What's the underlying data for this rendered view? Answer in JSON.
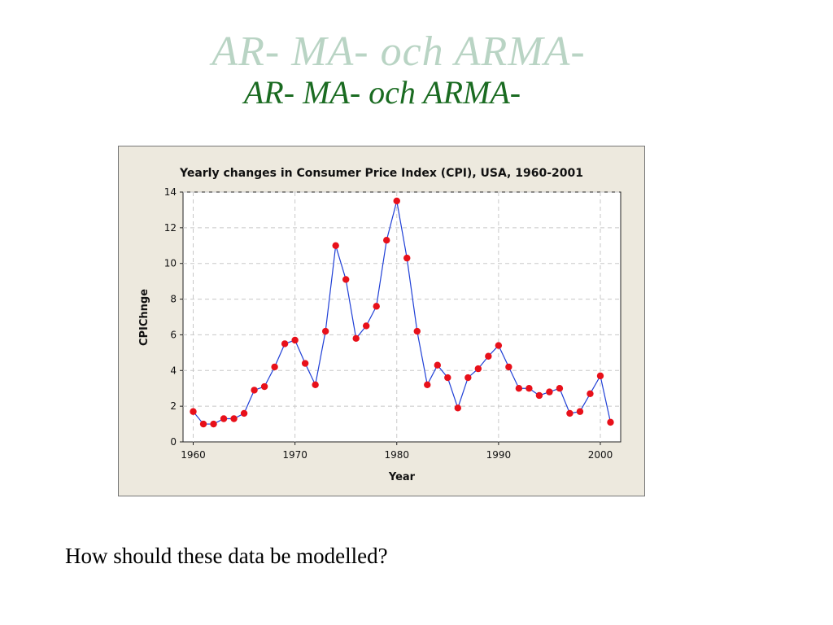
{
  "slide": {
    "title": "AR- MA- och ARMA-",
    "title_shadow": "AR- MA- och ARMA-",
    "question": "How should these data be modelled?"
  },
  "colors": {
    "title": "#1a6b21",
    "title_shadow": "#b9d4c4",
    "chart_bg": "#ede9de",
    "line": "#1f3fd6",
    "marker": "#e8101a",
    "grid": "#c8c8c8"
  },
  "chart_data": {
    "type": "line",
    "title": "Yearly changes in Consumer Price Index (CPI), USA, 1960-2001",
    "xlabel": "Year",
    "ylabel": "CPIChnge",
    "xlim": [
      1959,
      2002
    ],
    "ylim": [
      0,
      14
    ],
    "xticks": [
      1960,
      1970,
      1980,
      1990,
      2000
    ],
    "yticks": [
      0,
      2,
      4,
      6,
      8,
      10,
      12,
      14
    ],
    "grid": true,
    "series": [
      {
        "x": [
          1960,
          1961,
          1962,
          1963,
          1964,
          1965,
          1966,
          1967,
          1968,
          1969,
          1970,
          1971,
          1972,
          1973,
          1974,
          1975,
          1976,
          1977,
          1978,
          1979,
          1980,
          1981,
          1982,
          1983,
          1984,
          1985,
          1986,
          1987,
          1988,
          1989,
          1990,
          1991,
          1992,
          1993,
          1994,
          1995,
          1996,
          1997,
          1998,
          1999,
          2000,
          2001
        ],
        "values": [
          1.7,
          1.0,
          1.0,
          1.3,
          1.3,
          1.6,
          2.9,
          3.1,
          4.2,
          5.5,
          5.7,
          4.4,
          3.2,
          6.2,
          11.0,
          9.1,
          5.8,
          6.5,
          7.6,
          11.3,
          13.5,
          10.3,
          6.2,
          3.2,
          4.3,
          3.6,
          1.9,
          3.6,
          4.1,
          4.8,
          5.4,
          4.2,
          3.0,
          3.0,
          2.6,
          2.8,
          3.0,
          1.6,
          1.7,
          2.7,
          3.7,
          1.1
        ]
      }
    ]
  }
}
